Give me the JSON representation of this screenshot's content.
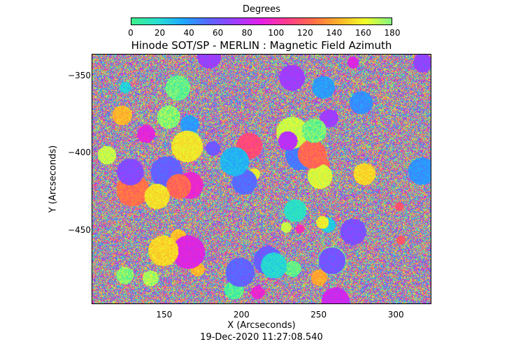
{
  "colorbar": {
    "label": "Degrees",
    "ticks": [
      "0",
      "20",
      "40",
      "60",
      "80",
      "100",
      "120",
      "140",
      "160",
      "180"
    ]
  },
  "title": "Hinode SOT/SP - MERLIN : Magnetic Field Azimuth",
  "x_axis": {
    "label": "X (Arcseconds)",
    "range": [
      103,
      323
    ],
    "ticks": [
      {
        "value": 150,
        "label": "150"
      },
      {
        "value": 200,
        "label": "200"
      },
      {
        "value": 250,
        "label": "250"
      },
      {
        "value": 300,
        "label": "300"
      }
    ]
  },
  "y_axis": {
    "label": "Y (Arcseconds)",
    "range": [
      -498,
      -336
    ],
    "ticks": [
      {
        "value": -350,
        "label": "−350"
      },
      {
        "value": -400,
        "label": "−400"
      },
      {
        "value": -450,
        "label": "−450"
      }
    ]
  },
  "timestamp": "19-Dec-2020 11:27:08.540",
  "colormap": [
    "#3cf08c",
    "#28e0d2",
    "#1ea6ff",
    "#5a64ff",
    "#a03cff",
    "#e61ee6",
    "#ff3c8c",
    "#ff6e46",
    "#ffb428",
    "#f0ff28",
    "#82f582"
  ]
}
